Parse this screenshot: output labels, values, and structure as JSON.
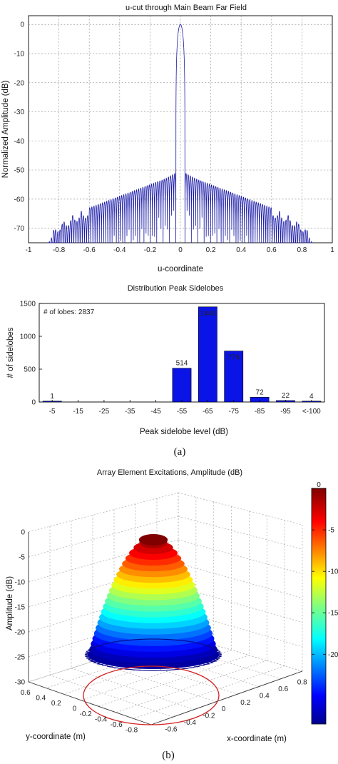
{
  "panel_labels": {
    "a": "(a)",
    "b": "(b)"
  },
  "chart_data": [
    {
      "type": "line",
      "title": "u-cut through Main Beam Far Field",
      "xlabel": "u-coordinate",
      "ylabel": "Normalized Amplitude (dB)",
      "xlim": [
        -1,
        1
      ],
      "ylim": [
        -75,
        3
      ],
      "xticks": [
        "-1",
        "-0.8",
        "-0.6",
        "-0.4",
        "-0.2",
        "0",
        "0.2",
        "0.4",
        "0.6",
        "0.8",
        "1"
      ],
      "yticks": [
        "0",
        "-10",
        "-20",
        "-30",
        "-40",
        "-50",
        "-60",
        "-70"
      ],
      "grid": true,
      "color": "#1a1aa8",
      "main_beam_null_u": 0.03,
      "sidelobe_envelope": {
        "u": [
          0.03,
          0.1,
          0.2,
          0.3,
          0.4,
          0.5,
          0.6,
          0.7,
          0.8,
          0.87
        ],
        "db": [
          -51,
          -53,
          -55,
          -57,
          -59,
          -61,
          -63,
          -65,
          -68,
          -72
        ]
      },
      "lobe_spacing_u": 0.014
    },
    {
      "type": "bar",
      "title": "Distribution Peak Sidelobes",
      "xlabel": "Peak sidelobe level (dB)",
      "ylabel": "# of sidelobes",
      "annotation": "# of lobes: 2837",
      "categories": [
        "-5",
        "-15",
        "-25",
        "-35",
        "-45",
        "-55",
        "-65",
        "-75",
        "-85",
        "-95",
        "<-100"
      ],
      "values": [
        1,
        0,
        0,
        0,
        0,
        514,
        1448,
        776,
        72,
        22,
        4
      ],
      "value_labels": [
        "1",
        "",
        "",
        "",
        "",
        "514",
        "1448",
        "776",
        "72",
        "22",
        "4"
      ],
      "ylim": [
        0,
        1500
      ],
      "yticks": [
        "0",
        "500",
        "1000",
        "1500"
      ],
      "grid": false,
      "color": "#0a14e6"
    },
    {
      "type": "surface",
      "title": "Array Element Excitations, Amplitude (dB)",
      "xlabel": "x-coordinate (m)",
      "ylabel": "y-coordinate (m)",
      "zlabel": "Amplitude (dB)",
      "zlim": [
        -30,
        0
      ],
      "zticks": [
        "0",
        "-5",
        "-10",
        "-15",
        "-20",
        "-25",
        "-30"
      ],
      "xticks": [
        "-0.6",
        "-0.4",
        "-0.2",
        "0",
        "0.2",
        "0.4",
        "0.6",
        "0.8"
      ],
      "yticks": [
        "0.6",
        "0.4",
        "0.2",
        "0",
        "-0.2",
        "-0.4",
        "-0.6",
        "-0.8"
      ],
      "aperture_radius_m": 0.85,
      "aperture_outline_color": "#d42020",
      "colormap": "jet",
      "colorbar_ticks": [
        "0",
        "-5",
        "-10",
        "-15",
        "-20"
      ],
      "colorbar_range": [
        -25,
        0
      ]
    }
  ]
}
